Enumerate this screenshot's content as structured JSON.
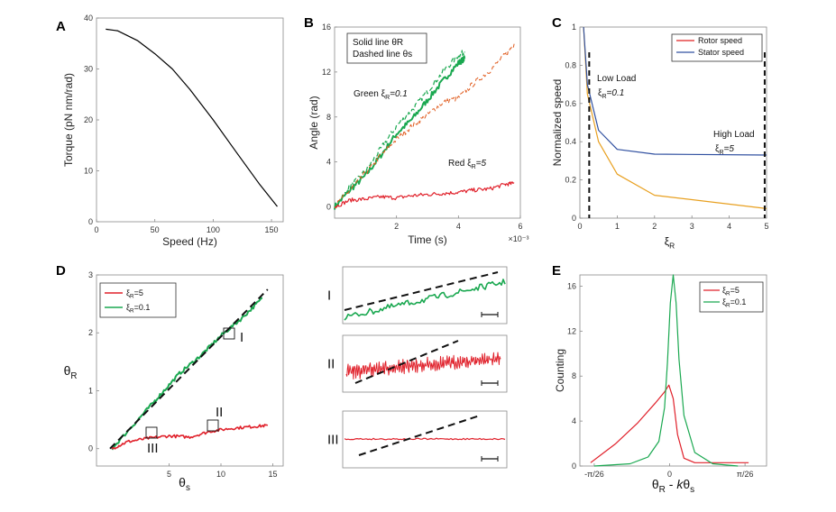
{
  "panels": {
    "A": {
      "label": "A",
      "chart_data": {
        "type": "line",
        "xlabel": "Speed (Hz)",
        "ylabel": "Torque (pN nm/rad)",
        "xlim": [
          0,
          160
        ],
        "ylim": [
          0,
          40
        ],
        "xticks": [
          "0",
          "50",
          "100",
          "150"
        ],
        "yticks": [
          "0",
          "10",
          "20",
          "30",
          "40"
        ],
        "series": [
          {
            "name": "torque-speed",
            "color": "#000000",
            "x": [
              8,
              18,
              35,
              50,
              65,
              80,
              100,
              120,
              140,
              155
            ],
            "y": [
              37.8,
              37.5,
              35.6,
              33,
              30,
              26,
              20,
              13.6,
              7.3,
              3
            ]
          }
        ]
      }
    },
    "B": {
      "label": "B",
      "chart_data": {
        "type": "line",
        "xlabel": "Time (s)",
        "ylabel": "Angle (rad)",
        "x_multiplier": "×10⁻³",
        "xlim": [
          0,
          6
        ],
        "ylim": [
          -1,
          16
        ],
        "xticks": [
          "2",
          "4",
          "6"
        ],
        "yticks": [
          "0",
          "4",
          "8",
          "12",
          "16"
        ],
        "legend_lines": [
          "Solid line  θR",
          "Dashed line  θs"
        ],
        "annotations": [
          "Green ξR=0.1",
          "Red  ξR=5"
        ],
        "series": [
          {
            "name": "green solid θR",
            "color": "#1aa850",
            "dash": false,
            "x": [
              0,
              0.5,
              1,
              1.5,
              2,
              2.5,
              3,
              3.5,
              4,
              4.2
            ],
            "y": [
              0,
              1.5,
              2.8,
              4.6,
              6.5,
              7.8,
              9.5,
              11.2,
              12.8,
              13.2
            ]
          },
          {
            "name": "green dashed θs",
            "color": "#1aa850",
            "dash": true,
            "x": [
              0,
              0.5,
              1,
              1.5,
              2,
              2.5,
              3,
              3.5,
              4,
              4.2
            ],
            "y": [
              0,
              1.8,
              3.2,
              5.2,
              7.2,
              8.6,
              10.3,
              12,
              13.5,
              13.8
            ]
          },
          {
            "name": "orange dashed θs",
            "color": "#e05a1c",
            "dash": true,
            "x": [
              0,
              0.5,
              1,
              1.5,
              2,
              2.5,
              3,
              3.5,
              4,
              4.5,
              5,
              5.5,
              5.8
            ],
            "y": [
              0,
              1.5,
              3,
              4.6,
              6,
              7.2,
              8.2,
              9.3,
              9.7,
              11,
              12.1,
              13.5,
              14.5
            ]
          },
          {
            "name": "red solid θR",
            "color": "#e0202a",
            "dash": false,
            "x": [
              0,
              0.5,
              1,
              1.5,
              2,
              2.5,
              3,
              3.5,
              4,
              4.5,
              5,
              5.5,
              5.8
            ],
            "y": [
              0,
              0.6,
              0.7,
              0.9,
              0.8,
              1.0,
              1.1,
              1.2,
              1.3,
              1.5,
              1.6,
              2.0,
              2.1
            ]
          }
        ]
      }
    },
    "C": {
      "label": "C",
      "chart_data": {
        "type": "line",
        "xlabel": "ξR",
        "ylabel": "Normalized speed",
        "xlim": [
          0,
          5
        ],
        "ylim": [
          0,
          1
        ],
        "xticks": [
          "0",
          "1",
          "2",
          "3",
          "4",
          "5"
        ],
        "yticks": [
          "0",
          "0.2",
          "0.4",
          "0.6",
          "0.8",
          "1"
        ],
        "annotations": [
          "Low Load",
          "ξR=0.1",
          "High Load",
          "ξR=5"
        ],
        "vlines": [
          0.25,
          4.95
        ],
        "series": [
          {
            "name": "Rotor speed",
            "color": "#e8a020",
            "x": [
              0.1,
              0.2,
              0.5,
              1,
              2,
              5
            ],
            "y": [
              1.0,
              0.65,
              0.4,
              0.23,
              0.12,
              0.05
            ]
          },
          {
            "name": "Stator speed",
            "color": "#3050a0",
            "x": [
              0.1,
              0.2,
              0.5,
              1,
              2,
              5
            ],
            "y": [
              1.0,
              0.7,
              0.46,
              0.36,
              0.335,
              0.33
            ]
          }
        ],
        "legend": [
          {
            "name": "Rotor speed",
            "color": "#e02020"
          },
          {
            "name": "Stator speed",
            "color": "#3050a0"
          }
        ]
      }
    },
    "D": {
      "label": "D",
      "chart_data": {
        "type": "line",
        "xlabel": "θs",
        "ylabel": "θR",
        "xlim": [
          -2,
          16
        ],
        "ylim": [
          -0.3,
          3
        ],
        "xticks": [
          "5",
          "10",
          "15"
        ],
        "yticks": [
          "0",
          "1",
          "2",
          "3"
        ],
        "legend": [
          {
            "name": "ξR=5",
            "color": "#e0202a"
          },
          {
            "name": "ξR=0.1",
            "color": "#1aa850"
          }
        ],
        "roman": [
          "I",
          "II",
          "III"
        ],
        "series": [
          {
            "name": "ξR=0.1",
            "color": "#1aa850",
            "x": [
              -0.5,
              2,
              4,
              6,
              8,
              10,
              12,
              14
            ],
            "y": [
              0,
              0.5,
              0.9,
              1.3,
              1.6,
              1.95,
              2.25,
              2.6
            ]
          },
          {
            "name": "ξR=5",
            "color": "#e0202a",
            "x": [
              -0.5,
              1,
              3,
              5,
              7,
              9,
              11,
              13,
              14.5
            ],
            "y": [
              0,
              0.12,
              0.18,
              0.22,
              0.2,
              0.3,
              0.35,
              0.38,
              0.4
            ]
          },
          {
            "name": "reference",
            "color": "#111111",
            "dash": true,
            "x": [
              -0.7,
              14.5
            ],
            "y": [
              0,
              2.75
            ]
          }
        ]
      }
    },
    "insets": {
      "labels": [
        "I",
        "II",
        "III"
      ]
    },
    "E": {
      "label": "E",
      "chart_data": {
        "type": "line",
        "xlabel": "θR - kθs",
        "ylabel": "Counting",
        "xlim": [
          -1.3,
          1.3
        ],
        "ylim": [
          0,
          17
        ],
        "xticks": [
          "-π/26",
          "0",
          "π/26"
        ],
        "yticks": [
          "0",
          "4",
          "8",
          "12",
          "16"
        ],
        "legend": [
          {
            "name": "ξR=5",
            "color": "#e0202a"
          },
          {
            "name": "ξR=0.1",
            "color": "#1aa850"
          }
        ],
        "series": [
          {
            "name": "ξR=5",
            "color": "#e0202a",
            "x": [
              -1.15,
              -0.8,
              -0.5,
              -0.25,
              -0.12,
              -0.06,
              0,
              0.06,
              0.15,
              0.3,
              0.6,
              1.05
            ],
            "y": [
              0.3,
              2.0,
              3.8,
              5.6,
              6.6,
              7.2,
              6.0,
              2.8,
              0.7,
              0.3,
              0.3,
              0.3
            ]
          },
          {
            "name": "ξR=0.1",
            "color": "#1aa850",
            "x": [
              -1.1,
              -0.6,
              -0.35,
              -0.2,
              -0.12,
              -0.08,
              -0.04,
              0,
              0.04,
              0.08,
              0.15,
              0.3,
              0.55,
              0.9
            ],
            "y": [
              0,
              0.2,
              0.8,
              2.2,
              5.2,
              9.2,
              14.5,
              17,
              14.5,
              9.5,
              4.5,
              1.2,
              0.2,
              0
            ]
          }
        ]
      }
    }
  }
}
